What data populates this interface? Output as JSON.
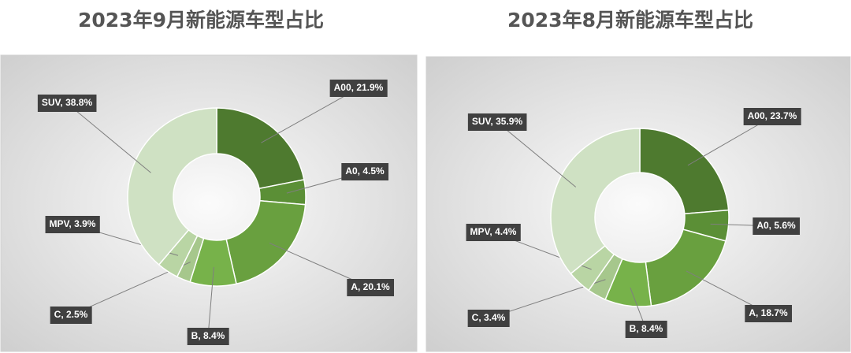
{
  "chart_data": [
    {
      "type": "donut",
      "title": "2023年9月新能源车型占比",
      "values": [
        21.9,
        4.5,
        20.1,
        8.4,
        2.5,
        3.9,
        38.8
      ],
      "value_labels": [
        "A00, 21.9%",
        "A0, 4.5%",
        "A, 20.1%",
        "B, 8.4%",
        "C, 2.5%",
        "MPV, 3.9%",
        "SUV, 38.8%"
      ],
      "colors": [
        "#4e7a2f",
        "#5b8f36",
        "#69a03f",
        "#77b24a",
        "#a6c78c",
        "#b9d5a4",
        "#cfe1c3"
      ]
    },
    {
      "type": "donut",
      "title": "2023年8月新能源车型占比",
      "values": [
        23.7,
        5.6,
        18.7,
        8.4,
        3.4,
        4.4,
        35.9
      ],
      "value_labels": [
        "A00, 23.7%",
        "A0, 5.6%",
        "A, 18.7%",
        "B, 8.4%",
        "C, 3.4%",
        "MPV, 4.4%",
        "SUV, 35.9%"
      ],
      "colors": [
        "#4e7a2f",
        "#5b8f36",
        "#69a03f",
        "#77b24a",
        "#a6c78c",
        "#b9d5a4",
        "#cfe1c3"
      ]
    }
  ]
}
